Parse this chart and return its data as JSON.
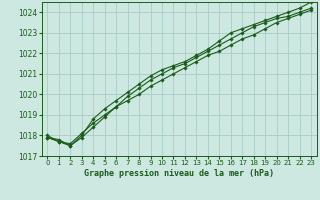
{
  "xlabel": "Graphe pression niveau de la mer (hPa)",
  "xlim": [
    -0.5,
    23.5
  ],
  "ylim": [
    1017,
    1024.5
  ],
  "yticks": [
    1017,
    1018,
    1019,
    1020,
    1021,
    1022,
    1023,
    1024
  ],
  "xticks": [
    0,
    1,
    2,
    3,
    4,
    5,
    6,
    7,
    8,
    9,
    10,
    11,
    12,
    13,
    14,
    15,
    16,
    17,
    18,
    19,
    20,
    21,
    22,
    23
  ],
  "background_color": "#cce8e0",
  "grid_color": "#aaccc4",
  "line_color": "#1a5c1a",
  "series": [
    [
      1017.9,
      1017.7,
      1017.6,
      1018.1,
      1018.6,
      1019.0,
      1019.4,
      1019.7,
      1020.0,
      1020.4,
      1020.7,
      1021.0,
      1021.3,
      1021.6,
      1021.9,
      1022.1,
      1022.4,
      1022.7,
      1022.9,
      1023.2,
      1023.5,
      1023.7,
      1023.9,
      1024.1
    ],
    [
      1017.9,
      1017.8,
      1017.5,
      1017.9,
      1018.4,
      1018.9,
      1019.4,
      1019.9,
      1020.3,
      1020.7,
      1021.0,
      1021.3,
      1021.5,
      1021.8,
      1022.1,
      1022.4,
      1022.7,
      1023.0,
      1023.3,
      1023.5,
      1023.7,
      1023.8,
      1024.0,
      1024.2
    ],
    [
      1018.0,
      1017.7,
      1017.5,
      1018.0,
      1018.8,
      1019.3,
      1019.7,
      1020.1,
      1020.5,
      1020.9,
      1021.2,
      1021.4,
      1021.6,
      1021.9,
      1022.2,
      1022.6,
      1023.0,
      1023.2,
      1023.4,
      1023.6,
      1023.8,
      1024.0,
      1024.2,
      1024.5
    ]
  ]
}
